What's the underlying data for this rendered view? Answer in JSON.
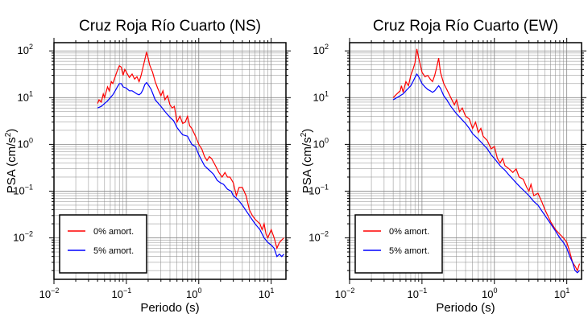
{
  "chart_data": [
    {
      "type": "line",
      "title": "Cruz Roja Río Cuarto (NS)",
      "xlabel": "Periodo (s)",
      "ylabel_main": "PSA (cm/s",
      "ylabel_sup": "2",
      "ylabel_close": ")",
      "xscale": "log",
      "yscale": "log",
      "xlim": [
        0.01,
        16
      ],
      "ylim": [
        0.0013,
        150
      ],
      "grid": true,
      "legend_position": "bottom-left",
      "x_ticks": [
        {
          "base": "10",
          "exp": "−2"
        },
        {
          "base": "10",
          "exp": "−1"
        },
        {
          "base": "10",
          "exp": "0"
        },
        {
          "base": "10",
          "exp": "1"
        }
      ],
      "y_ticks": [
        {
          "base": "10",
          "exp": "−2"
        },
        {
          "base": "10",
          "exp": "−1"
        },
        {
          "base": "10",
          "exp": "0"
        },
        {
          "base": "10",
          "exp": "1"
        },
        {
          "base": "10",
          "exp": "2"
        }
      ],
      "series": [
        {
          "name": "0% amort.",
          "color": "#ff0000",
          "points": [
            [
              0.04,
              7.5
            ],
            [
              0.042,
              9
            ],
            [
              0.045,
              8
            ],
            [
              0.048,
              12
            ],
            [
              0.05,
              10
            ],
            [
              0.055,
              17
            ],
            [
              0.058,
              14
            ],
            [
              0.062,
              22
            ],
            [
              0.065,
              20
            ],
            [
              0.07,
              28
            ],
            [
              0.075,
              38
            ],
            [
              0.08,
              48
            ],
            [
              0.085,
              45
            ],
            [
              0.09,
              30
            ],
            [
              0.095,
              40
            ],
            [
              0.1,
              35
            ],
            [
              0.11,
              27
            ],
            [
              0.12,
              32
            ],
            [
              0.13,
              25
            ],
            [
              0.14,
              28
            ],
            [
              0.15,
              22
            ],
            [
              0.16,
              30
            ],
            [
              0.17,
              45
            ],
            [
              0.18,
              65
            ],
            [
              0.19,
              95
            ],
            [
              0.2,
              70
            ],
            [
              0.21,
              50
            ],
            [
              0.23,
              35
            ],
            [
              0.25,
              22
            ],
            [
              0.27,
              16
            ],
            [
              0.3,
              11
            ],
            [
              0.32,
              14
            ],
            [
              0.34,
              9
            ],
            [
              0.37,
              11
            ],
            [
              0.4,
              7
            ],
            [
              0.43,
              6
            ],
            [
              0.46,
              6.5
            ],
            [
              0.5,
              3
            ],
            [
              0.55,
              4
            ],
            [
              0.6,
              2.8
            ],
            [
              0.65,
              3
            ],
            [
              0.7,
              4
            ],
            [
              0.75,
              2.5
            ],
            [
              0.8,
              2.2
            ],
            [
              0.9,
              1.5
            ],
            [
              1.0,
              1.0
            ],
            [
              1.1,
              0.8
            ],
            [
              1.2,
              0.55
            ],
            [
              1.3,
              0.45
            ],
            [
              1.4,
              0.55
            ],
            [
              1.5,
              0.5
            ],
            [
              1.7,
              0.35
            ],
            [
              1.9,
              0.25
            ],
            [
              2.1,
              0.2
            ],
            [
              2.3,
              0.25
            ],
            [
              2.5,
              0.2
            ],
            [
              2.7,
              0.2
            ],
            [
              3.0,
              0.15
            ],
            [
              3.3,
              0.08
            ],
            [
              3.6,
              0.12
            ],
            [
              4.0,
              0.12
            ],
            [
              4.5,
              0.08
            ],
            [
              5.0,
              0.04
            ],
            [
              5.5,
              0.03
            ],
            [
              6.0,
              0.025
            ],
            [
              7.0,
              0.02
            ],
            [
              7.5,
              0.015
            ],
            [
              8.0,
              0.02
            ],
            [
              8.5,
              0.012
            ],
            [
              9.0,
              0.01
            ],
            [
              10.0,
              0.015
            ],
            [
              11.0,
              0.01
            ],
            [
              12.0,
              0.006
            ],
            [
              13.0,
              0.008
            ],
            [
              14.0,
              0.009
            ],
            [
              15.0,
              0.01
            ]
          ]
        },
        {
          "name": "5% amort.",
          "color": "#0000ff",
          "points": [
            [
              0.04,
              6
            ],
            [
              0.045,
              6.5
            ],
            [
              0.05,
              7.5
            ],
            [
              0.055,
              8.5
            ],
            [
              0.06,
              10
            ],
            [
              0.065,
              11.5
            ],
            [
              0.07,
              14
            ],
            [
              0.075,
              17
            ],
            [
              0.08,
              20
            ],
            [
              0.085,
              20
            ],
            [
              0.09,
              17
            ],
            [
              0.1,
              16
            ],
            [
              0.11,
              14
            ],
            [
              0.12,
              14
            ],
            [
              0.13,
              13
            ],
            [
              0.14,
              12
            ],
            [
              0.15,
              11.5
            ],
            [
              0.16,
              12.5
            ],
            [
              0.17,
              15
            ],
            [
              0.18,
              19
            ],
            [
              0.19,
              21
            ],
            [
              0.2,
              19
            ],
            [
              0.22,
              15
            ],
            [
              0.25,
              9
            ],
            [
              0.3,
              6.5
            ],
            [
              0.35,
              4.8
            ],
            [
              0.4,
              3.8
            ],
            [
              0.45,
              3.2
            ],
            [
              0.5,
              2.3
            ],
            [
              0.55,
              1.9
            ],
            [
              0.6,
              1.6
            ],
            [
              0.7,
              1.5
            ],
            [
              0.8,
              1.0
            ],
            [
              0.9,
              0.9
            ],
            [
              1.0,
              0.6
            ],
            [
              1.2,
              0.35
            ],
            [
              1.4,
              0.28
            ],
            [
              1.6,
              0.23
            ],
            [
              1.8,
              0.17
            ],
            [
              2.0,
              0.15
            ],
            [
              2.2,
              0.14
            ],
            [
              2.5,
              0.11
            ],
            [
              2.8,
              0.1
            ],
            [
              3.0,
              0.08
            ],
            [
              3.5,
              0.065
            ],
            [
              4.0,
              0.05
            ],
            [
              5.0,
              0.03
            ],
            [
              6.0,
              0.02
            ],
            [
              7.0,
              0.015
            ],
            [
              8.0,
              0.01
            ],
            [
              9.0,
              0.008
            ],
            [
              10.0,
              0.007
            ],
            [
              11.0,
              0.006
            ],
            [
              12.0,
              0.004
            ],
            [
              13.0,
              0.0045
            ],
            [
              14.0,
              0.004
            ],
            [
              15.0,
              0.0045
            ]
          ]
        }
      ]
    },
    {
      "type": "line",
      "title": "Cruz Roja Río Cuarto (EW)",
      "xlabel": "Periodo (s)",
      "ylabel_main": "PSA (cm/s",
      "ylabel_sup": "2",
      "ylabel_close": ")",
      "xscale": "log",
      "yscale": "log",
      "xlim": [
        0.01,
        16
      ],
      "ylim": [
        0.0013,
        150
      ],
      "grid": true,
      "legend_position": "bottom-left",
      "x_ticks": [
        {
          "base": "10",
          "exp": "−2"
        },
        {
          "base": "10",
          "exp": "−1"
        },
        {
          "base": "10",
          "exp": "0"
        },
        {
          "base": "10",
          "exp": "1"
        }
      ],
      "y_ticks": [
        {
          "base": "10",
          "exp": "−2"
        },
        {
          "base": "10",
          "exp": "−1"
        },
        {
          "base": "10",
          "exp": "0"
        },
        {
          "base": "10",
          "exp": "1"
        },
        {
          "base": "10",
          "exp": "2"
        }
      ],
      "series": [
        {
          "name": "0% amort.",
          "color": "#ff0000",
          "points": [
            [
              0.04,
              10
            ],
            [
              0.045,
              12
            ],
            [
              0.05,
              14
            ],
            [
              0.052,
              18
            ],
            [
              0.055,
              13
            ],
            [
              0.06,
              22
            ],
            [
              0.065,
              18
            ],
            [
              0.07,
              30
            ],
            [
              0.075,
              40
            ],
            [
              0.08,
              55
            ],
            [
              0.085,
              110
            ],
            [
              0.09,
              70
            ],
            [
              0.095,
              50
            ],
            [
              0.1,
              35
            ],
            [
              0.11,
              28
            ],
            [
              0.12,
              30
            ],
            [
              0.13,
              25
            ],
            [
              0.14,
              22
            ],
            [
              0.15,
              30
            ],
            [
              0.16,
              45
            ],
            [
              0.17,
              70
            ],
            [
              0.18,
              35
            ],
            [
              0.2,
              20
            ],
            [
              0.22,
              15
            ],
            [
              0.25,
              10
            ],
            [
              0.28,
              7
            ],
            [
              0.3,
              9
            ],
            [
              0.33,
              5
            ],
            [
              0.36,
              6
            ],
            [
              0.4,
              4
            ],
            [
              0.45,
              3.5
            ],
            [
              0.5,
              2.2
            ],
            [
              0.55,
              3
            ],
            [
              0.6,
              1.8
            ],
            [
              0.65,
              2.2
            ],
            [
              0.7,
              1.5
            ],
            [
              0.8,
              1.2
            ],
            [
              0.9,
              0.8
            ],
            [
              1.0,
              0.9
            ],
            [
              1.1,
              0.5
            ],
            [
              1.2,
              0.4
            ],
            [
              1.3,
              0.5
            ],
            [
              1.4,
              0.35
            ],
            [
              1.6,
              0.3
            ],
            [
              1.8,
              0.25
            ],
            [
              2.0,
              0.3
            ],
            [
              2.2,
              0.2
            ],
            [
              2.5,
              0.18
            ],
            [
              2.8,
              0.12
            ],
            [
              3.0,
              0.1
            ],
            [
              3.2,
              0.14
            ],
            [
              3.5,
              0.08
            ],
            [
              4.0,
              0.09
            ],
            [
              4.5,
              0.06
            ],
            [
              5.0,
              0.04
            ],
            [
              6.0,
              0.022
            ],
            [
              7.0,
              0.015
            ],
            [
              8.0,
              0.012
            ],
            [
              9.0,
              0.01
            ],
            [
              10.0,
              0.008
            ],
            [
              11.0,
              0.005
            ],
            [
              12.0,
              0.003
            ],
            [
              13.0,
              0.0025
            ],
            [
              14.0,
              0.002
            ],
            [
              15.0,
              0.0028
            ]
          ]
        },
        {
          "name": "5% amort.",
          "color": "#0000ff",
          "points": [
            [
              0.04,
              9
            ],
            [
              0.045,
              10
            ],
            [
              0.05,
              11
            ],
            [
              0.055,
              12
            ],
            [
              0.06,
              14
            ],
            [
              0.065,
              16
            ],
            [
              0.07,
              18
            ],
            [
              0.075,
              22
            ],
            [
              0.08,
              27
            ],
            [
              0.085,
              32
            ],
            [
              0.09,
              28
            ],
            [
              0.1,
              20
            ],
            [
              0.11,
              17
            ],
            [
              0.12,
              15
            ],
            [
              0.13,
              14
            ],
            [
              0.14,
              13
            ],
            [
              0.15,
              14
            ],
            [
              0.16,
              16
            ],
            [
              0.17,
              18
            ],
            [
              0.18,
              16
            ],
            [
              0.2,
              11
            ],
            [
              0.22,
              9
            ],
            [
              0.25,
              6.5
            ],
            [
              0.3,
              4.5
            ],
            [
              0.35,
              3.5
            ],
            [
              0.4,
              2.8
            ],
            [
              0.45,
              2.2
            ],
            [
              0.5,
              1.7
            ],
            [
              0.6,
              1.3
            ],
            [
              0.7,
              1.0
            ],
            [
              0.8,
              0.8
            ],
            [
              0.9,
              0.6
            ],
            [
              1.0,
              0.5
            ],
            [
              1.2,
              0.35
            ],
            [
              1.4,
              0.28
            ],
            [
              1.6,
              0.22
            ],
            [
              1.8,
              0.18
            ],
            [
              2.0,
              0.15
            ],
            [
              2.3,
              0.12
            ],
            [
              2.6,
              0.1
            ],
            [
              3.0,
              0.08
            ],
            [
              3.5,
              0.06
            ],
            [
              4.0,
              0.05
            ],
            [
              5.0,
              0.03
            ],
            [
              6.0,
              0.02
            ],
            [
              7.0,
              0.014
            ],
            [
              8.0,
              0.01
            ],
            [
              9.0,
              0.008
            ],
            [
              10.0,
              0.006
            ],
            [
              11.0,
              0.004
            ],
            [
              12.0,
              0.003
            ],
            [
              13.0,
              0.002
            ],
            [
              14.0,
              0.0018
            ],
            [
              15.0,
              0.002
            ]
          ]
        }
      ]
    }
  ]
}
